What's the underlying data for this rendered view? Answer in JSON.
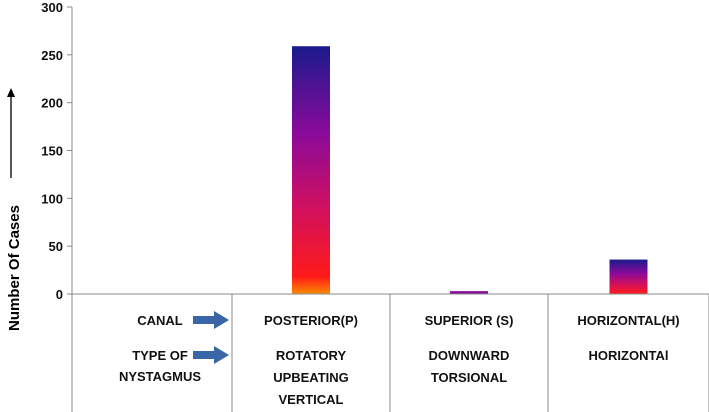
{
  "chart_data": {
    "type": "bar",
    "ylabel": "Number Of Cases",
    "ylim": [
      0,
      300
    ],
    "yticks": [
      0,
      50,
      100,
      150,
      200,
      250,
      300
    ],
    "grid": false,
    "legend": "none",
    "table": {
      "canal_label": "CANAL",
      "nystagmus_label": [
        "TYPE OF",
        "NYSTAGMUS"
      ]
    },
    "categories": [
      {
        "canal": "",
        "nystagmus": []
      },
      {
        "canal": "POSTERIOR(P)",
        "nystagmus": [
          "ROTATORY",
          "UPBEATING",
          "VERTICAL"
        ]
      },
      {
        "canal": "SUPERIOR (S)",
        "nystagmus": [
          "DOWNWARD",
          "TORSIONAL"
        ]
      },
      {
        "canal": "HORIZONTAL(H)",
        "nystagmus": [
          "HORIZONTAl"
        ]
      }
    ],
    "values": [
      0,
      259,
      3,
      36
    ],
    "colors": {
      "bar_top": "#1a1a8c",
      "bar_mid_high": "#8a0a9a",
      "bar_mid": "#d01060",
      "bar_low": "#ff1a1a",
      "bar_base": "#ff8c00",
      "arrow": "#3a66a8",
      "axis": "#888888"
    }
  }
}
